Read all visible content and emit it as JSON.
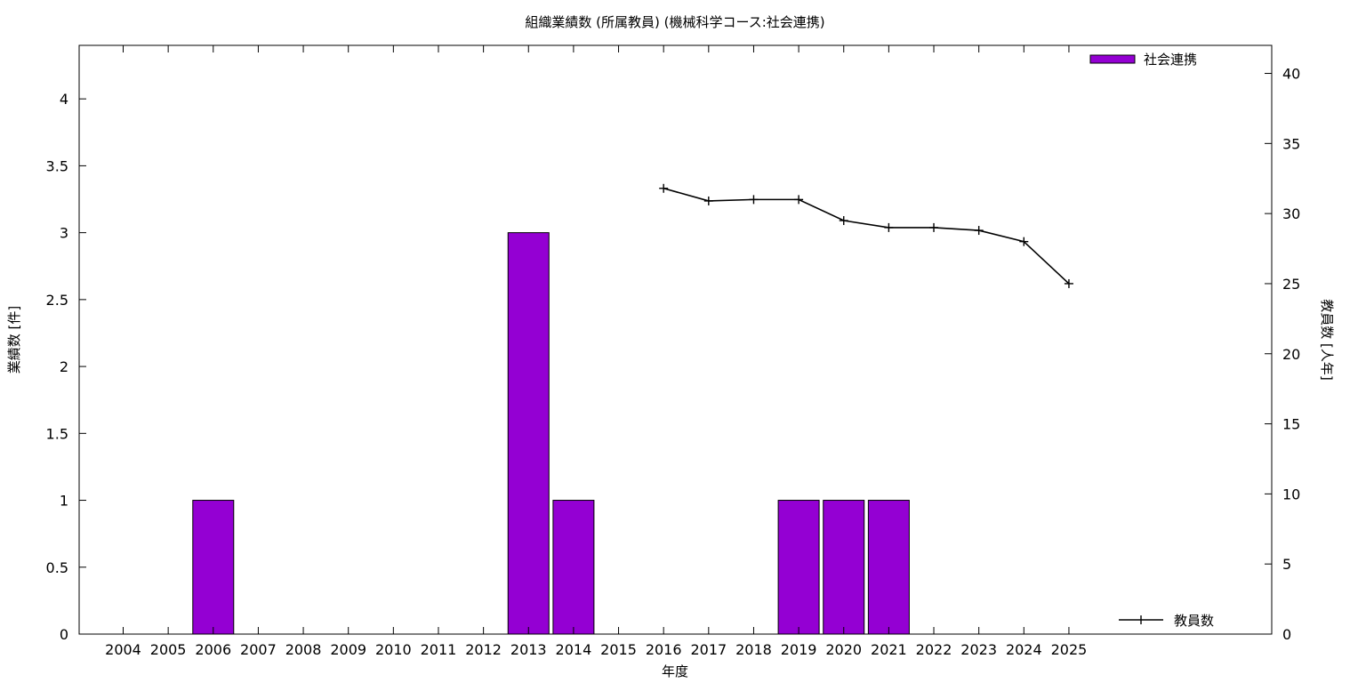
{
  "chart_data": {
    "type": "bar",
    "title": "組織業績数 (所属教員) (機械科学コース:社会連携)",
    "xlabel": "年度",
    "ylabel_left": "業績数 [件]",
    "ylabel_right": "教員数 [人年]",
    "categories": [
      "2004",
      "2005",
      "2006",
      "2007",
      "2008",
      "2009",
      "2010",
      "2011",
      "2012",
      "2013",
      "2014",
      "2015",
      "2016",
      "2017",
      "2018",
      "2019",
      "2020",
      "2021",
      "2022",
      "2023",
      "2024",
      "2025"
    ],
    "ylim_left": [
      0,
      4.4
    ],
    "yticks_left": [
      "0",
      "0.5",
      "1",
      "1.5",
      "2",
      "2.5",
      "3",
      "3.5",
      "4"
    ],
    "ylim_right": [
      0,
      42
    ],
    "yticks_right": [
      "0",
      "5",
      "10",
      "15",
      "20",
      "25",
      "30",
      "35",
      "40"
    ],
    "grid": false,
    "series": [
      {
        "name": "社会連携",
        "kind": "bar",
        "axis": "left",
        "color": "#9400d3",
        "values": [
          0,
          0,
          1,
          0,
          0,
          0,
          0,
          0,
          0,
          3,
          1,
          0,
          0,
          0,
          0,
          1,
          1,
          1,
          0,
          0,
          0,
          0
        ]
      },
      {
        "name": "教員数",
        "kind": "line",
        "axis": "right",
        "color": "#000000",
        "values": [
          null,
          null,
          null,
          null,
          null,
          null,
          null,
          null,
          null,
          null,
          null,
          null,
          31.8,
          30.9,
          31.0,
          31.0,
          29.5,
          29.0,
          29.0,
          28.8,
          28.0,
          25.0
        ]
      }
    ],
    "legend": [
      {
        "label": "社会連携",
        "placement": "top-right"
      },
      {
        "label": "教員数",
        "placement": "bottom-right"
      }
    ]
  }
}
